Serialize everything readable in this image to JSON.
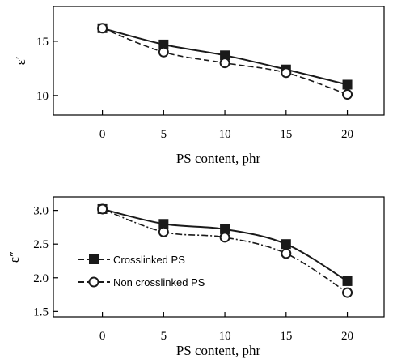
{
  "chart_data": [
    {
      "type": "line",
      "xlabel": "PS content, phr",
      "ylabel": "ε′",
      "x": [
        0,
        5,
        10,
        15,
        20
      ],
      "xlim": [
        -4,
        23
      ],
      "ylim": [
        8.2,
        18.2
      ],
      "xticks": [
        0,
        5,
        10,
        15,
        20
      ],
      "yticks": [
        10,
        15
      ],
      "legend": "none",
      "grid": false,
      "series": [
        {
          "name": "Crosslinked PS",
          "values": [
            16.2,
            14.7,
            13.7,
            12.4,
            11.0
          ],
          "marker": "filled-square",
          "line": "solid",
          "color": "#1a1a1a"
        },
        {
          "name": "Non crosslinked PS",
          "values": [
            16.2,
            14.0,
            13.0,
            12.1,
            10.1
          ],
          "marker": "open-circle",
          "line": "dashed",
          "color": "#1a1a1a"
        }
      ]
    },
    {
      "type": "line",
      "xlabel": "PS content, phr",
      "ylabel": "ε″",
      "x": [
        0,
        5,
        10,
        15,
        20
      ],
      "xlim": [
        -4,
        23
      ],
      "ylim": [
        1.42,
        3.2
      ],
      "xticks": [
        0,
        5,
        10,
        15,
        20
      ],
      "yticks": [
        1.5,
        2.0,
        2.5,
        3.0
      ],
      "legend": "middle-left",
      "grid": false,
      "series": [
        {
          "name": "Crosslinked PS",
          "values": [
            3.02,
            2.8,
            2.72,
            2.5,
            1.95
          ],
          "marker": "filled-square",
          "line": "solid",
          "color": "#1a1a1a"
        },
        {
          "name": "Non crosslinked PS",
          "values": [
            3.02,
            2.68,
            2.6,
            2.36,
            1.78
          ],
          "marker": "open-circle",
          "line": "dashdot",
          "color": "#1a1a1a"
        }
      ]
    }
  ]
}
